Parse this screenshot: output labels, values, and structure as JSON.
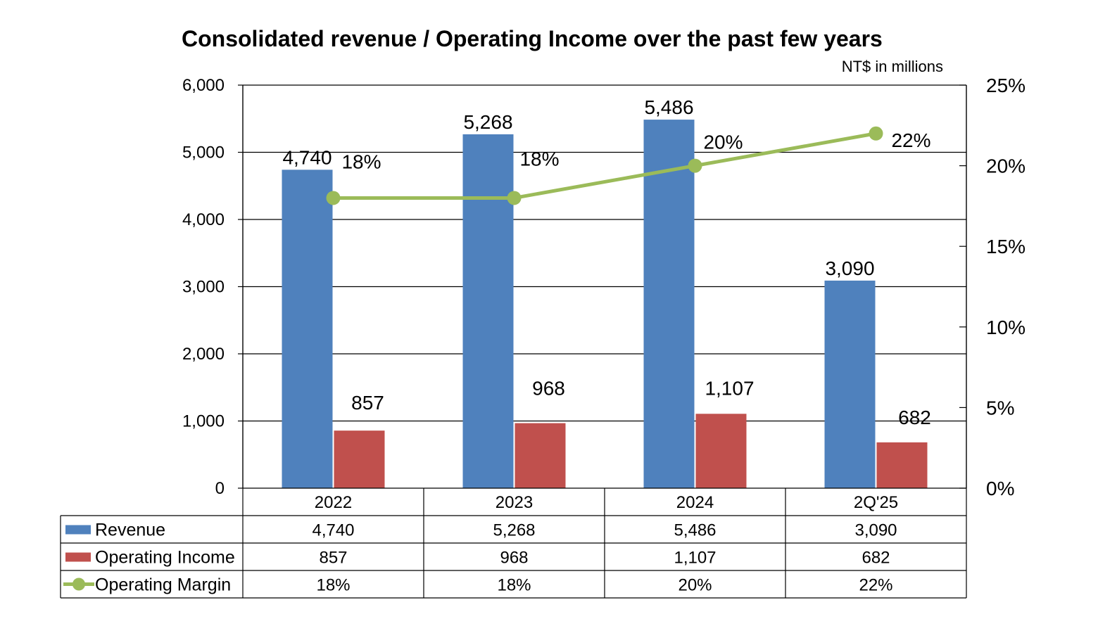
{
  "chart_data": {
    "type": "bar",
    "title": "Consolidated revenue / Operating Income over the past few years",
    "unit_note": "NT$ in millions",
    "categories": [
      "2022",
      "2023",
      "2024",
      "2Q'25"
    ],
    "ylim": [
      0,
      6000
    ],
    "yticks": [
      "0",
      "1,000",
      "2,000",
      "3,000",
      "4,000",
      "5,000",
      "6,000"
    ],
    "ytick_values": [
      0,
      1000,
      2000,
      3000,
      4000,
      5000,
      6000
    ],
    "y2lim": [
      0,
      25
    ],
    "y2ticks": [
      "0%",
      "5%",
      "10%",
      "15%",
      "20%",
      "25%"
    ],
    "y2tick_values": [
      0,
      5,
      10,
      15,
      20,
      25
    ],
    "grid": true,
    "legend": "data-table",
    "series": [
      {
        "name": "Revenue",
        "type": "bar",
        "axis": "left",
        "color": "#4f81bd",
        "values": [
          4740,
          5268,
          5486,
          3090
        ],
        "labels": [
          "4,740",
          "5,268",
          "5,486",
          "3,090"
        ]
      },
      {
        "name": "Operating Income",
        "type": "bar",
        "axis": "left",
        "color": "#c0504d",
        "values": [
          857,
          968,
          1107,
          682
        ],
        "labels": [
          "857",
          "968",
          "1,107",
          "682"
        ]
      },
      {
        "name": "Operating Margin",
        "type": "line",
        "axis": "right",
        "color": "#9bbb59",
        "values": [
          18,
          18,
          20,
          22
        ],
        "labels": [
          "18%",
          "18%",
          "20%",
          "22%"
        ]
      }
    ]
  }
}
